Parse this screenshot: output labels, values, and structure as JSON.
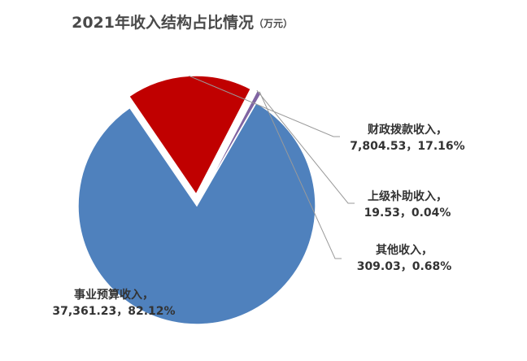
{
  "chart_data": {
    "type": "pie",
    "title": "2021年收入结构占比情况",
    "subtitle": "（万元）",
    "series": [
      {
        "name": "事业预算收入",
        "value": 37361.23,
        "value_label": "37,361.23",
        "percent_label": "82.12%",
        "color": "#4f81bd",
        "exploded": false
      },
      {
        "name": "财政拨款收入",
        "value": 7804.53,
        "value_label": "7,804.53",
        "percent_label": "17.16%",
        "color": "#c00000",
        "exploded": true
      },
      {
        "name": "上级补助收入",
        "value": 19.53,
        "value_label": "19.53",
        "percent_label": "0.04%",
        "color": "#9bbb59",
        "exploded": true
      },
      {
        "name": "其他收入",
        "value": 309.03,
        "value_label": "309.03",
        "percent_label": "0.68%",
        "color": "#8064a2",
        "exploded": true
      }
    ],
    "legend": "none"
  }
}
